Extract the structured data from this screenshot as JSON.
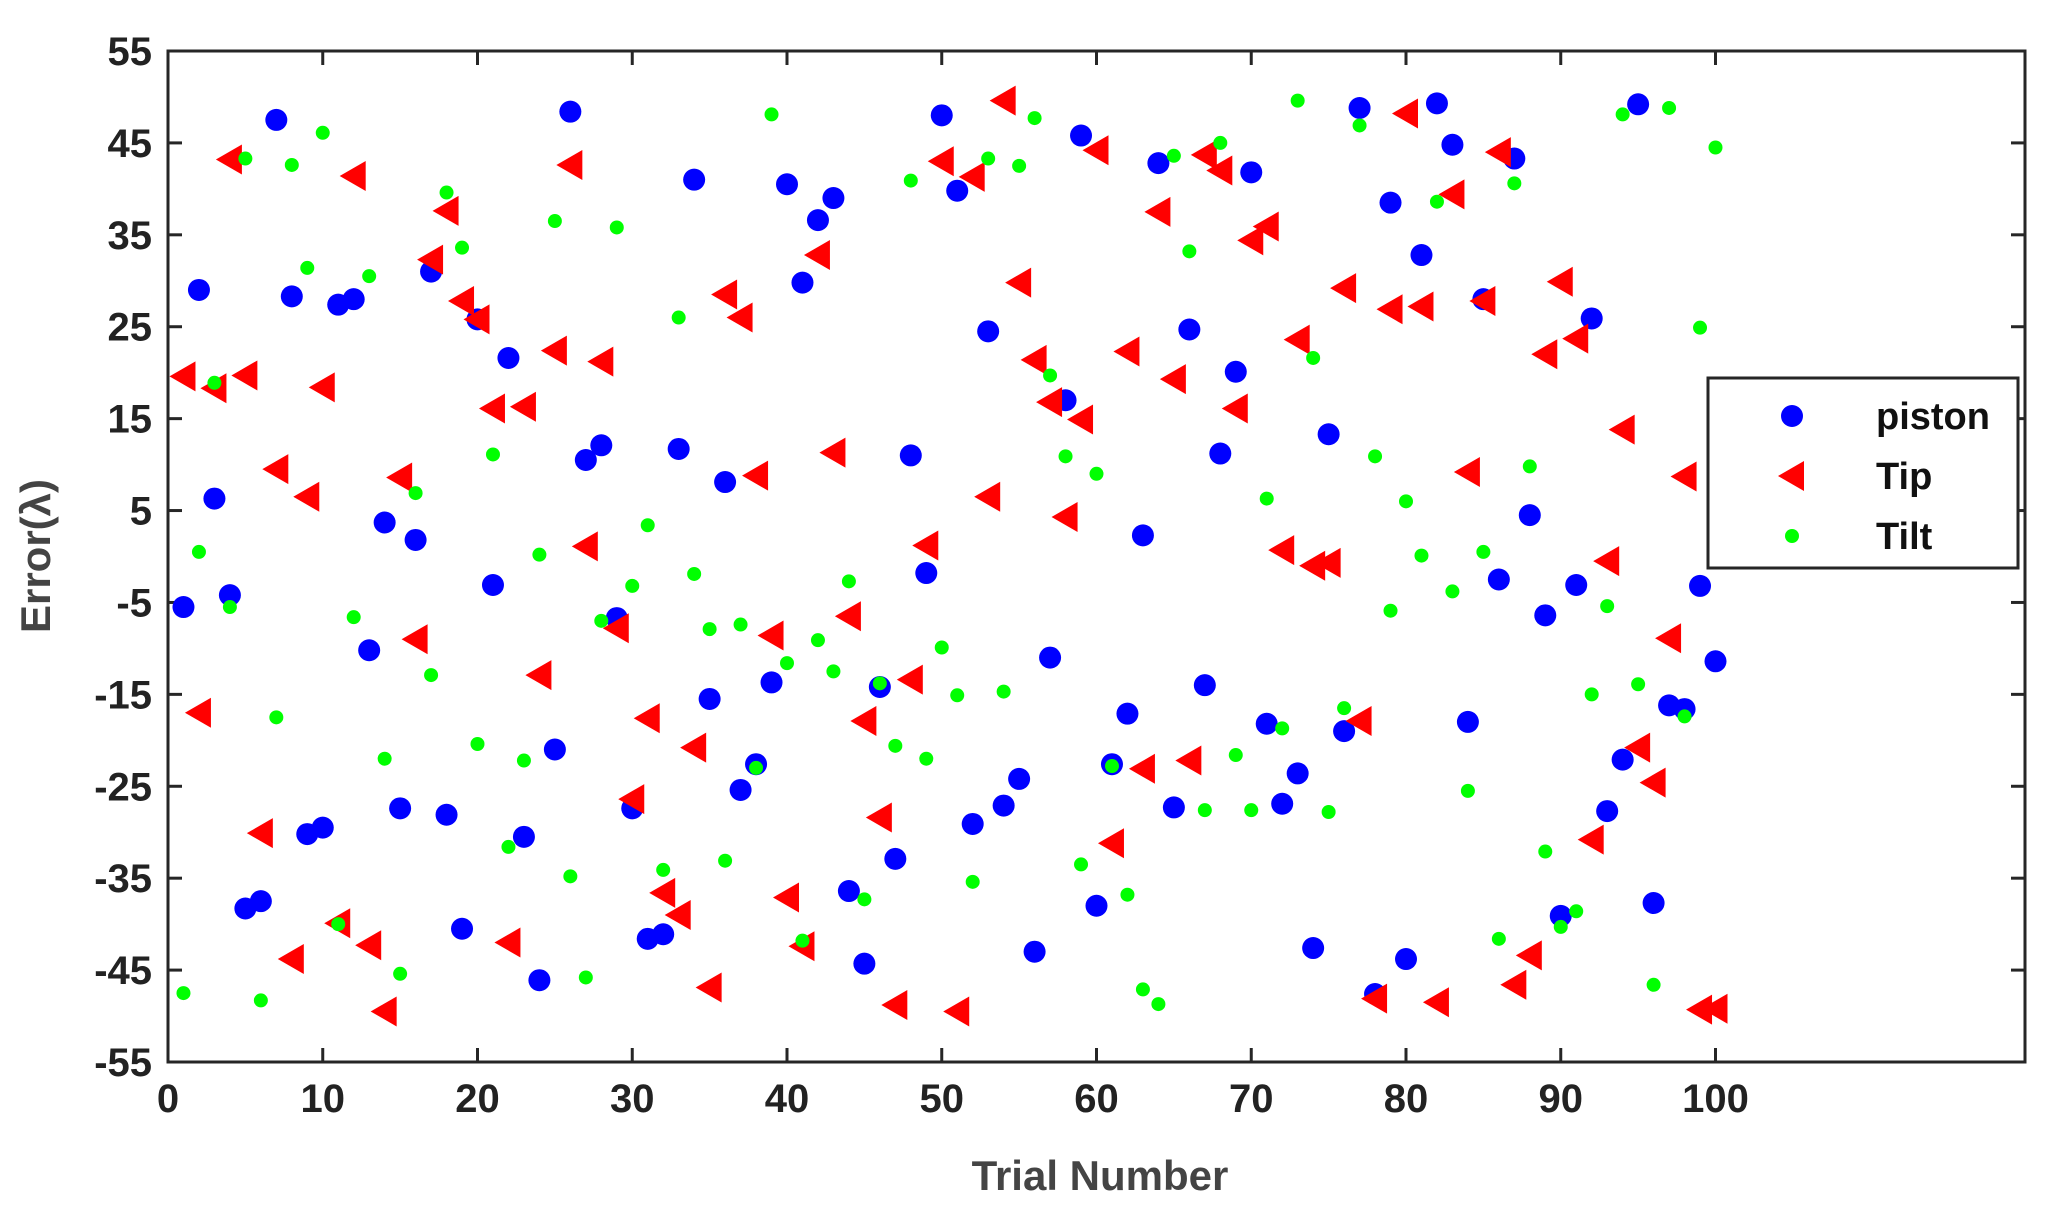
{
  "chart_data": {
    "type": "scatter",
    "xlabel": "Trial Number",
    "ylabel": "Error(λ)",
    "xlim": [
      0,
      120
    ],
    "ylim": [
      -55,
      55
    ],
    "xticks": [
      0,
      10,
      20,
      30,
      40,
      50,
      60,
      70,
      80,
      90,
      100
    ],
    "yticks": [
      -55,
      -45,
      -35,
      -25,
      -15,
      -5,
      5,
      15,
      25,
      35,
      45,
      55
    ],
    "grid": false,
    "legend_position": "right",
    "series": [
      {
        "name": "piston",
        "marker": "circle",
        "color": "#0000ff",
        "x": [
          1,
          2,
          3,
          4,
          5,
          6,
          7,
          8,
          9,
          10,
          11,
          12,
          13,
          14,
          15,
          16,
          17,
          18,
          19,
          20,
          21,
          22,
          23,
          24,
          25,
          26,
          27,
          28,
          29,
          30,
          31,
          32,
          33,
          34,
          35,
          36,
          37,
          38,
          39,
          40,
          41,
          42,
          43,
          44,
          45,
          46,
          47,
          48,
          49,
          50,
          51,
          52,
          53,
          54,
          55,
          56,
          57,
          58,
          59,
          60,
          61,
          62,
          63,
          64,
          65,
          66,
          67,
          68,
          69,
          70,
          71,
          72,
          73,
          74,
          75,
          76,
          77,
          78,
          79,
          80,
          81,
          82,
          83,
          84,
          85,
          86,
          87,
          88,
          89,
          90,
          91,
          92,
          93,
          94,
          95,
          96,
          97,
          98,
          99,
          100
        ],
        "y": [
          -5.5,
          29,
          6.3,
          -4.2,
          -38.3,
          -37.5,
          47.5,
          28.3,
          -30.2,
          -29.5,
          27.4,
          28,
          -10.2,
          3.7,
          -27.4,
          1.8,
          31,
          -28.1,
          -40.5,
          25.8,
          -3.1,
          21.6,
          -30.5,
          -46.1,
          -21,
          48.4,
          10.5,
          12.1,
          -6.7,
          -27.4,
          -41.6,
          -41.1,
          11.7,
          41,
          -15.5,
          8.1,
          -25.4,
          -22.6,
          -13.7,
          40.5,
          29.8,
          36.6,
          39,
          -36.4,
          -44.3,
          -14.2,
          -32.9,
          11,
          -1.8,
          48,
          39.8,
          -29.1,
          24.5,
          -27.1,
          -24.2,
          -43,
          -11,
          17,
          45.8,
          -38,
          -22.6,
          -17.1,
          2.3,
          42.8,
          -27.3,
          24.7,
          -14,
          11.2,
          20.1,
          41.8,
          -18.2,
          -26.9,
          -23.6,
          -42.6,
          13.3,
          -19,
          48.8,
          -47.6,
          38.5,
          -43.8,
          32.8,
          49.3,
          44.8,
          -18,
          28,
          -2.5,
          43.3,
          4.5,
          -6.4,
          -39.1,
          -3.1,
          25.9,
          -27.7,
          -22.1,
          49.2,
          -37.7,
          -16.2,
          -16.6,
          -3.2,
          -11.4
        ]
      },
      {
        "name": "Tip",
        "marker": "triangle-left",
        "color": "#ff0000",
        "x": [
          1,
          2,
          3,
          4,
          5,
          6,
          7,
          8,
          9,
          10,
          11,
          12,
          13,
          14,
          15,
          16,
          17,
          18,
          19,
          20,
          21,
          22,
          23,
          24,
          25,
          26,
          27,
          28,
          29,
          30,
          31,
          32,
          33,
          34,
          35,
          36,
          37,
          38,
          39,
          40,
          41,
          42,
          43,
          44,
          45,
          46,
          47,
          48,
          49,
          50,
          51,
          52,
          53,
          54,
          55,
          56,
          57,
          58,
          59,
          60,
          61,
          62,
          63,
          64,
          65,
          66,
          67,
          68,
          69,
          70,
          71,
          72,
          73,
          74,
          75,
          76,
          77,
          78,
          79,
          80,
          81,
          82,
          83,
          84,
          85,
          86,
          87,
          88,
          89,
          90,
          91,
          92,
          93,
          94,
          95,
          96,
          97,
          98,
          99,
          100
        ],
        "y": [
          19.6,
          -17,
          18.3,
          43.2,
          19.7,
          -30.1,
          9.5,
          -43.8,
          6.5,
          18.4,
          -39.9,
          41.4,
          -42.3,
          -49.5,
          8.6,
          -9,
          32.3,
          37.6,
          27.8,
          25.8,
          16.1,
          -42,
          16.3,
          -12.9,
          22.4,
          42.6,
          1.1,
          21.2,
          -7.8,
          -26.4,
          -17.6,
          -36.6,
          -39,
          -20.8,
          -46.9,
          28.5,
          26,
          8.8,
          -8.6,
          -37.1,
          -42.4,
          32.8,
          11.3,
          -6.5,
          -17.9,
          -28.4,
          -48.8,
          -13.4,
          1.2,
          43,
          -49.5,
          41.3,
          6.5,
          49.6,
          29.8,
          21.4,
          16.8,
          4.3,
          14.9,
          44.2,
          -31.2,
          22.3,
          -23.1,
          37.5,
          19.3,
          -22.2,
          43.7,
          42,
          16.1,
          34.4,
          35.9,
          0.7,
          23.6,
          -1,
          -0.7,
          29.2,
          -17.9,
          -48.1,
          26.9,
          48.2,
          27.2,
          -48.5,
          39.4,
          9.2,
          27.8,
          44,
          -46.6,
          -43.4,
          22,
          29.9,
          23.7,
          -30.8,
          -0.5,
          13.8,
          -20.8,
          -24.6,
          -8.9,
          8.7,
          -49.3,
          -49.2
        ]
      },
      {
        "name": "Tilt",
        "marker": "dot",
        "color": "#00ff00",
        "x": [
          1,
          2,
          3,
          4,
          5,
          6,
          7,
          8,
          9,
          10,
          11,
          12,
          13,
          14,
          15,
          16,
          17,
          18,
          19,
          20,
          21,
          22,
          23,
          24,
          25,
          26,
          27,
          28,
          29,
          30,
          31,
          32,
          33,
          34,
          35,
          36,
          37,
          38,
          39,
          40,
          41,
          42,
          43,
          44,
          45,
          46,
          47,
          48,
          49,
          50,
          51,
          52,
          53,
          54,
          55,
          56,
          57,
          58,
          59,
          60,
          61,
          62,
          63,
          64,
          65,
          66,
          67,
          68,
          69,
          70,
          71,
          72,
          73,
          74,
          75,
          76,
          77,
          78,
          79,
          80,
          81,
          82,
          83,
          84,
          85,
          86,
          87,
          88,
          89,
          90,
          91,
          92,
          93,
          94,
          95,
          96,
          97,
          98,
          99,
          100
        ],
        "y": [
          -47.5,
          0.5,
          18.9,
          -5.5,
          43.3,
          -48.3,
          -17.5,
          42.6,
          31.4,
          46.1,
          -40,
          -6.6,
          30.5,
          -22,
          -45.4,
          6.9,
          -12.9,
          39.6,
          33.6,
          -20.4,
          11.1,
          -31.6,
          -22.2,
          0.2,
          36.5,
          -34.8,
          -45.8,
          -7,
          35.8,
          -3.2,
          3.4,
          -34.1,
          26,
          -1.9,
          -7.9,
          -33.1,
          -7.4,
          -23,
          48.1,
          -11.6,
          -41.8,
          -9.1,
          -12.5,
          -2.7,
          -37.3,
          -13.8,
          -20.6,
          40.9,
          -22,
          -9.9,
          -15.1,
          -35.4,
          43.3,
          -14.7,
          42.5,
          47.7,
          19.7,
          10.9,
          -33.5,
          9,
          -22.8,
          -36.8,
          -47.1,
          -48.7,
          43.6,
          33.2,
          -27.6,
          45,
          -21.6,
          -27.6,
          6.3,
          -18.7,
          49.6,
          21.6,
          -27.8,
          -16.5,
          46.9,
          10.9,
          -5.9,
          6,
          0.1,
          38.6,
          -3.8,
          -25.5,
          0.5,
          -41.6,
          40.6,
          9.8,
          -32.1,
          -40.3,
          -38.6,
          -15,
          -5.4,
          48.1,
          -13.9,
          -46.6,
          48.8,
          -17.4,
          24.9,
          44.5
        ]
      }
    ]
  }
}
